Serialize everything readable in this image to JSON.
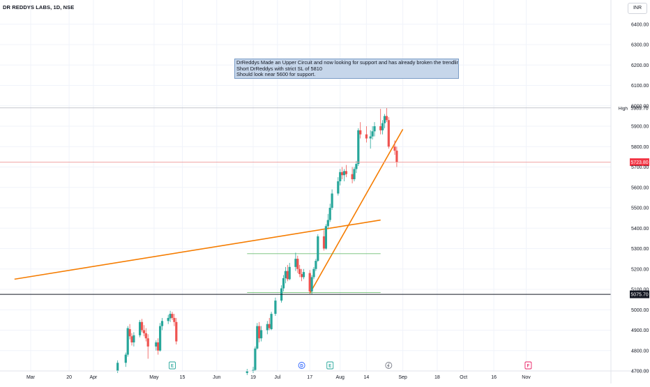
{
  "header": {
    "title": "DR REDDYS LABS, 1D, NSE",
    "currency": "INR"
  },
  "annotation": {
    "lines": [
      "DrReddys Made an Upper Circuit and now looking for support and has already broken the trendline,",
      "Short DrReddys with strict SL of 5810",
      "Should look near 5600 for support."
    ]
  },
  "price_markers": [
    {
      "label": "High",
      "value": "5989.70",
      "price": 5989.7,
      "style": "plain"
    },
    {
      "label": "",
      "value": "5723.80",
      "price": 5723.8,
      "style": "red"
    },
    {
      "label": "",
      "value": "5075.70",
      "price": 5075.7,
      "style": "black"
    }
  ],
  "event_markers": [
    {
      "type": "E",
      "date": "2023-05-10",
      "color": "#26a69a"
    },
    {
      "type": "D",
      "date": "2023-07-13",
      "color": "#2962ff"
    },
    {
      "type": "E",
      "date": "2023-07-27",
      "color": "#26a69a"
    },
    {
      "type": "S",
      "date": "2023-08-25",
      "color": "#787b86"
    },
    {
      "type": "F",
      "date": "2023-11-02",
      "color": "#e91e63"
    }
  ],
  "colors": {
    "up": "#26a69a",
    "down": "#ef5350",
    "trendline": "#f57c00",
    "range": "#4caf50",
    "grid": "#f0f3fa"
  },
  "chart_data": {
    "type": "candlestick",
    "x_axis": {
      "ticks": [
        {
          "date": "2023-03-01",
          "label": "Mar"
        },
        {
          "date": "2023-03-20",
          "label": "20"
        },
        {
          "date": "2023-04-01",
          "label": "Apr"
        },
        {
          "date": "2023-05-01",
          "label": "May"
        },
        {
          "date": "2023-05-15",
          "label": "15"
        },
        {
          "date": "2023-06-01",
          "label": "Jun"
        },
        {
          "date": "2023-06-19",
          "label": "19"
        },
        {
          "date": "2023-07-01",
          "label": "Jul"
        },
        {
          "date": "2023-07-17",
          "label": "17"
        },
        {
          "date": "2023-08-01",
          "label": "Aug"
        },
        {
          "date": "2023-08-14",
          "label": "14"
        },
        {
          "date": "2023-09-01",
          "label": "Sep"
        },
        {
          "date": "2023-09-18",
          "label": "18"
        },
        {
          "date": "2023-10-01",
          "label": "Oct"
        },
        {
          "date": "2023-10-16",
          "label": "16"
        },
        {
          "date": "2023-11-01",
          "label": "Nov"
        }
      ]
    },
    "y_axis": {
      "ticks": [
        4700,
        4800,
        4900,
        5000,
        5100,
        5200,
        5300,
        5400,
        5500,
        5600,
        5700,
        5800,
        5900,
        6000,
        6100,
        6200,
        6300,
        6400
      ],
      "range": [
        4700,
        6400
      ]
    },
    "series": [
      {
        "date": "2023-04-13",
        "o": 4700,
        "h": 4752,
        "l": 4690,
        "c": 4740
      },
      {
        "date": "2023-04-17",
        "o": 4740,
        "h": 4790,
        "l": 4720,
        "c": 4780
      },
      {
        "date": "2023-04-18",
        "o": 4780,
        "h": 4920,
        "l": 4770,
        "c": 4910
      },
      {
        "date": "2023-04-19",
        "o": 4905,
        "h": 4930,
        "l": 4855,
        "c": 4870
      },
      {
        "date": "2023-04-20",
        "o": 4870,
        "h": 4885,
        "l": 4825,
        "c": 4840
      },
      {
        "date": "2023-04-21",
        "o": 4840,
        "h": 4890,
        "l": 4820,
        "c": 4875
      },
      {
        "date": "2023-04-24",
        "o": 4875,
        "h": 4950,
        "l": 4865,
        "c": 4940
      },
      {
        "date": "2023-04-25",
        "o": 4940,
        "h": 4955,
        "l": 4890,
        "c": 4900
      },
      {
        "date": "2023-04-26",
        "o": 4900,
        "h": 4925,
        "l": 4870,
        "c": 4885
      },
      {
        "date": "2023-04-27",
        "o": 4885,
        "h": 4910,
        "l": 4845,
        "c": 4860
      },
      {
        "date": "2023-04-28",
        "o": 4860,
        "h": 4880,
        "l": 4760,
        "c": 4820
      },
      {
        "date": "2023-05-02",
        "o": 4820,
        "h": 4850,
        "l": 4800,
        "c": 4840
      },
      {
        "date": "2023-05-03",
        "o": 4840,
        "h": 4860,
        "l": 4780,
        "c": 4800
      },
      {
        "date": "2023-05-04",
        "o": 4800,
        "h": 4935,
        "l": 4795,
        "c": 4920
      },
      {
        "date": "2023-05-05",
        "o": 4920,
        "h": 4960,
        "l": 4900,
        "c": 4945
      },
      {
        "date": "2023-05-08",
        "o": 4945,
        "h": 4975,
        "l": 4930,
        "c": 4960
      },
      {
        "date": "2023-05-09",
        "o": 4958,
        "h": 4995,
        "l": 4940,
        "c": 4980
      },
      {
        "date": "2023-05-10",
        "o": 4980,
        "h": 4990,
        "l": 4950,
        "c": 4960
      },
      {
        "date": "2023-05-11",
        "o": 4960,
        "h": 4980,
        "l": 4920,
        "c": 4940
      },
      {
        "date": "2023-05-12",
        "o": 4940,
        "h": 4960,
        "l": 4830,
        "c": 4845
      },
      {
        "date": "2023-06-16",
        "o": 4690,
        "h": 4710,
        "l": 4680,
        "c": 4700
      },
      {
        "date": "2023-06-19",
        "o": 4700,
        "h": 4720,
        "l": 4690,
        "c": 4705
      },
      {
        "date": "2023-06-20",
        "o": 4705,
        "h": 4820,
        "l": 4700,
        "c": 4810
      },
      {
        "date": "2023-06-21",
        "o": 4810,
        "h": 4935,
        "l": 4805,
        "c": 4920
      },
      {
        "date": "2023-06-22",
        "o": 4920,
        "h": 4940,
        "l": 4840,
        "c": 4860
      },
      {
        "date": "2023-06-23",
        "o": 4860,
        "h": 4920,
        "l": 4845,
        "c": 4900
      },
      {
        "date": "2023-06-26",
        "o": 4900,
        "h": 4945,
        "l": 4880,
        "c": 4930
      },
      {
        "date": "2023-06-27",
        "o": 4930,
        "h": 4960,
        "l": 4900,
        "c": 4910
      },
      {
        "date": "2023-06-28",
        "o": 4905,
        "h": 4990,
        "l": 4900,
        "c": 4980
      },
      {
        "date": "2023-06-30",
        "o": 4980,
        "h": 5060,
        "l": 4970,
        "c": 5045
      },
      {
        "date": "2023-07-03",
        "o": 5045,
        "h": 5120,
        "l": 5035,
        "c": 5105
      },
      {
        "date": "2023-07-04",
        "o": 5105,
        "h": 5170,
        "l": 5090,
        "c": 5155
      },
      {
        "date": "2023-07-05",
        "o": 5155,
        "h": 5210,
        "l": 5130,
        "c": 5190
      },
      {
        "date": "2023-07-06",
        "o": 5190,
        "h": 5220,
        "l": 5140,
        "c": 5150
      },
      {
        "date": "2023-07-07",
        "o": 5150,
        "h": 5230,
        "l": 5145,
        "c": 5210
      },
      {
        "date": "2023-07-10",
        "o": 5210,
        "h": 5280,
        "l": 5190,
        "c": 5250
      },
      {
        "date": "2023-07-11",
        "o": 5250,
        "h": 5265,
        "l": 5180,
        "c": 5200
      },
      {
        "date": "2023-07-12",
        "o": 5200,
        "h": 5220,
        "l": 5160,
        "c": 5175
      },
      {
        "date": "2023-07-13",
        "o": 5175,
        "h": 5200,
        "l": 5140,
        "c": 5160
      },
      {
        "date": "2023-07-14",
        "o": 5160,
        "h": 5200,
        "l": 5150,
        "c": 5185
      },
      {
        "date": "2023-07-17",
        "o": 5180,
        "h": 5195,
        "l": 5080,
        "c": 5090
      },
      {
        "date": "2023-07-18",
        "o": 5090,
        "h": 5170,
        "l": 5075,
        "c": 5160
      },
      {
        "date": "2023-07-19",
        "o": 5160,
        "h": 5210,
        "l": 5150,
        "c": 5200
      },
      {
        "date": "2023-07-20",
        "o": 5200,
        "h": 5250,
        "l": 5190,
        "c": 5240
      },
      {
        "date": "2023-07-21",
        "o": 5240,
        "h": 5370,
        "l": 5235,
        "c": 5360
      },
      {
        "date": "2023-07-24",
        "o": 5360,
        "h": 5390,
        "l": 5290,
        "c": 5300
      },
      {
        "date": "2023-07-25",
        "o": 5300,
        "h": 5420,
        "l": 5295,
        "c": 5410
      },
      {
        "date": "2023-07-26",
        "o": 5410,
        "h": 5470,
        "l": 5400,
        "c": 5440
      },
      {
        "date": "2023-07-27",
        "o": 5440,
        "h": 5520,
        "l": 5430,
        "c": 5500
      },
      {
        "date": "2023-07-28",
        "o": 5500,
        "h": 5590,
        "l": 5490,
        "c": 5570
      },
      {
        "date": "2023-07-31",
        "o": 5570,
        "h": 5650,
        "l": 5560,
        "c": 5630
      },
      {
        "date": "2023-08-01",
        "o": 5630,
        "h": 5690,
        "l": 5610,
        "c": 5675
      },
      {
        "date": "2023-08-02",
        "o": 5675,
        "h": 5700,
        "l": 5640,
        "c": 5660
      },
      {
        "date": "2023-08-03",
        "o": 5660,
        "h": 5690,
        "l": 5630,
        "c": 5680
      },
      {
        "date": "2023-08-04",
        "o": 5680,
        "h": 5710,
        "l": 5650,
        "c": 5665
      },
      {
        "date": "2023-08-07",
        "o": 5665,
        "h": 5700,
        "l": 5620,
        "c": 5640
      },
      {
        "date": "2023-08-08",
        "o": 5640,
        "h": 5700,
        "l": 5630,
        "c": 5690
      },
      {
        "date": "2023-08-09",
        "o": 5690,
        "h": 5730,
        "l": 5670,
        "c": 5715
      },
      {
        "date": "2023-08-10",
        "o": 5715,
        "h": 5890,
        "l": 5705,
        "c": 5880
      },
      {
        "date": "2023-08-11",
        "o": 5880,
        "h": 5920,
        "l": 5840,
        "c": 5860
      },
      {
        "date": "2023-08-14",
        "o": 5860,
        "h": 5900,
        "l": 5820,
        "c": 5840
      },
      {
        "date": "2023-08-16",
        "o": 5840,
        "h": 5880,
        "l": 5790,
        "c": 5850
      },
      {
        "date": "2023-08-17",
        "o": 5850,
        "h": 5900,
        "l": 5835,
        "c": 5875
      },
      {
        "date": "2023-08-18",
        "o": 5875,
        "h": 5920,
        "l": 5850,
        "c": 5900
      },
      {
        "date": "2023-08-21",
        "o": 5900,
        "h": 5985,
        "l": 5860,
        "c": 5880
      },
      {
        "date": "2023-08-22",
        "o": 5880,
        "h": 5930,
        "l": 5860,
        "c": 5915
      },
      {
        "date": "2023-08-23",
        "o": 5915,
        "h": 5960,
        "l": 5890,
        "c": 5950
      },
      {
        "date": "2023-08-24",
        "o": 5950,
        "h": 5990,
        "l": 5920,
        "c": 5930
      },
      {
        "date": "2023-08-25",
        "o": 5930,
        "h": 5945,
        "l": 5790,
        "c": 5800
      },
      {
        "date": "2023-08-28",
        "o": 5800,
        "h": 5830,
        "l": 5760,
        "c": 5780
      },
      {
        "date": "2023-08-29",
        "o": 5780,
        "h": 5800,
        "l": 5700,
        "c": 5723.8
      }
    ],
    "drawings": [
      {
        "type": "trendline",
        "color": "#f57c00",
        "from": {
          "date": "2023-02-21",
          "price": 5150
        },
        "to": {
          "date": "2023-08-21",
          "price": 5440
        }
      },
      {
        "type": "trendline",
        "color": "#f57c00",
        "from": {
          "date": "2023-07-17",
          "price": 5080
        },
        "to": {
          "date": "2023-09-01",
          "price": 5885
        }
      },
      {
        "type": "hline",
        "color": "#4caf50",
        "from_date": "2023-06-16",
        "to_date": "2023-08-21",
        "price": 5275
      },
      {
        "type": "hline",
        "color": "#4caf50",
        "from_date": "2023-06-16",
        "to_date": "2023-08-21",
        "price": 5085
      }
    ]
  }
}
